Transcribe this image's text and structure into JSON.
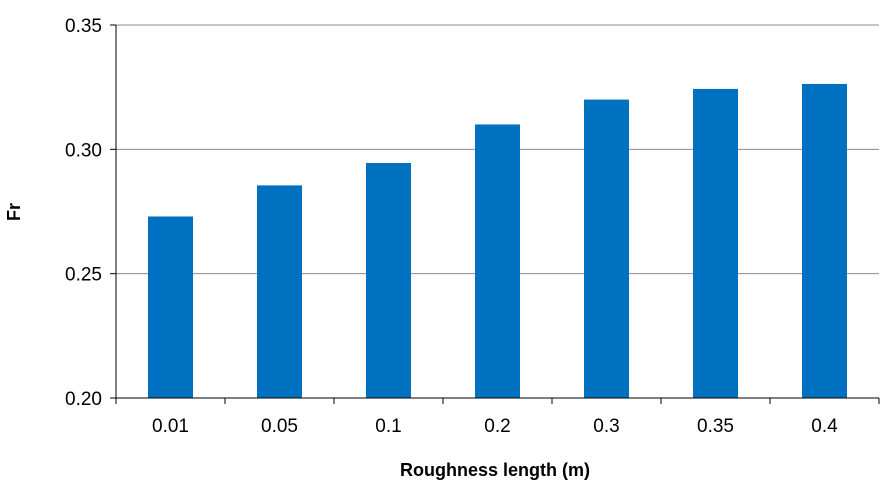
{
  "chart_data": {
    "type": "bar",
    "xlabel": "Roughness length (m)",
    "ylabel": "Fr",
    "categories": [
      "0.01",
      "0.05",
      "0.1",
      "0.2",
      "0.3",
      "0.35",
      "0.4"
    ],
    "values": [
      0.273,
      0.2855,
      0.2945,
      0.31,
      0.32,
      0.3243,
      0.3263
    ],
    "ylim": [
      0.2,
      0.35
    ],
    "yticks": [
      "0.20",
      "0.25",
      "0.30",
      "0.35"
    ],
    "grid": true,
    "legend": "none",
    "colors": {
      "bar": "#0070C0",
      "grid": "#8c8c8c",
      "axis": "#000000"
    }
  }
}
